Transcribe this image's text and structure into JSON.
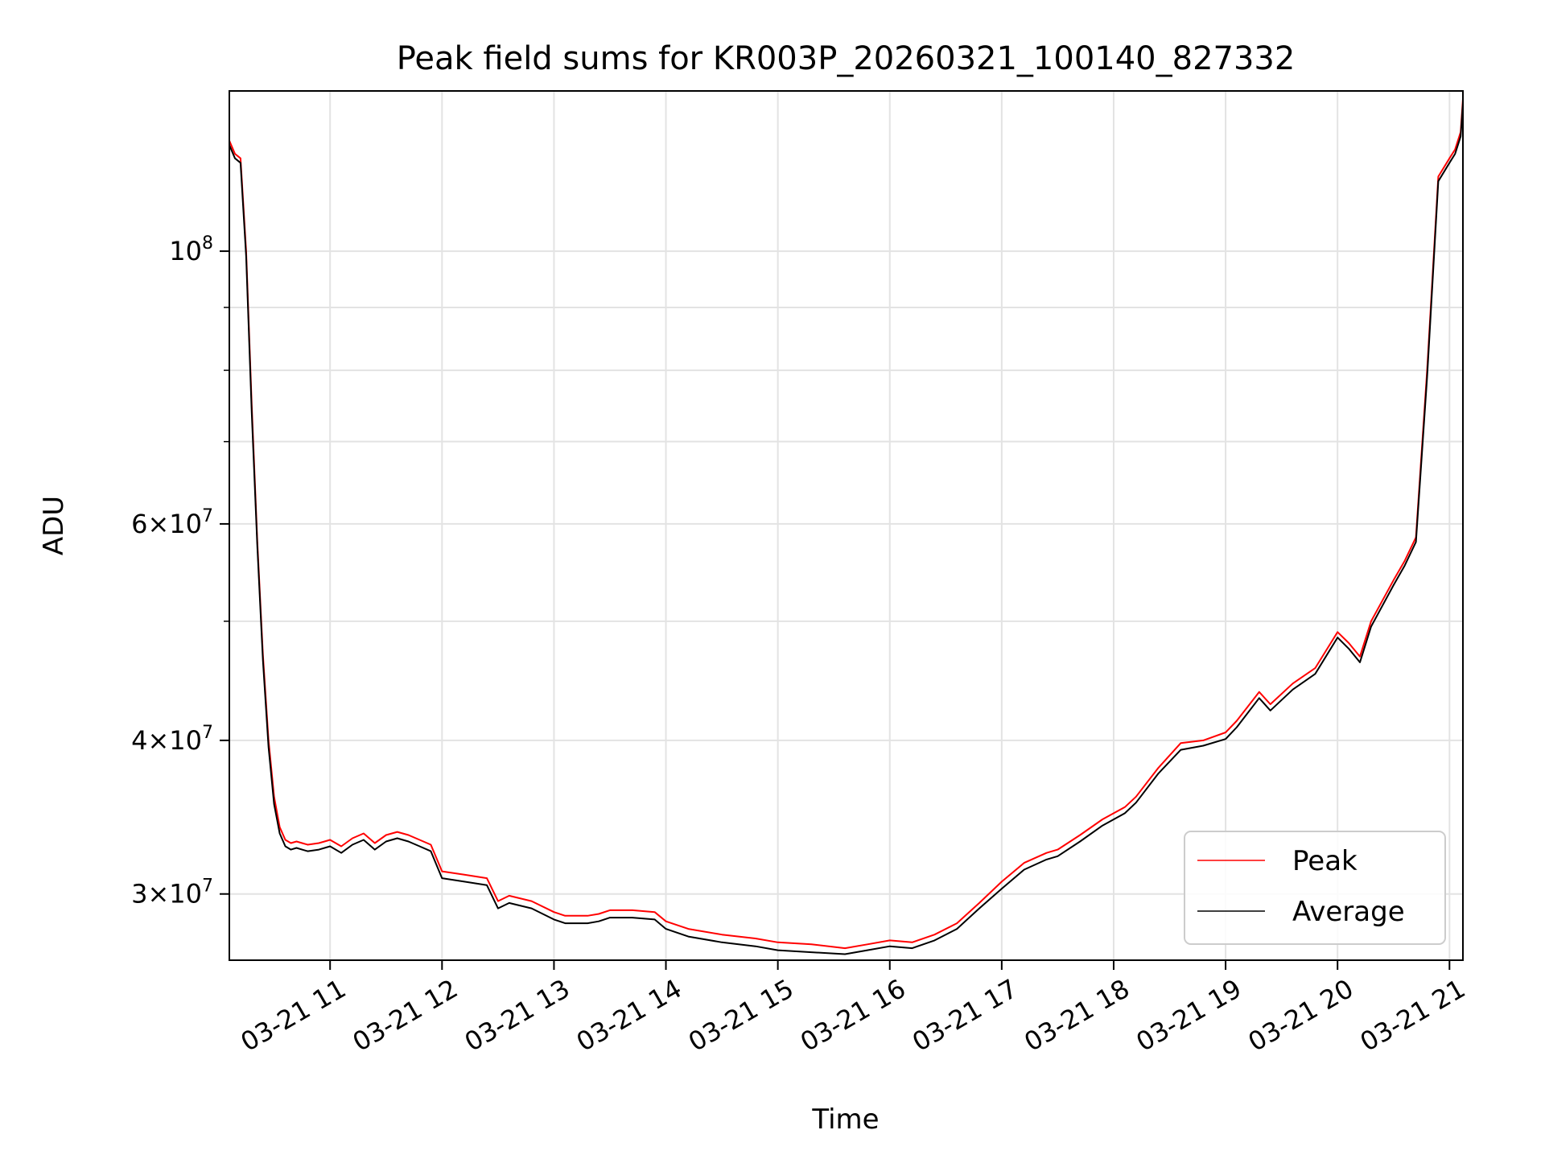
{
  "chart_data": {
    "type": "line",
    "title": "Peak field sums for KR003P_20260321_100140_827332",
    "xlabel": "Time",
    "ylabel": "ADU",
    "yscale": "log",
    "xlim": [
      10.1,
      21.12
    ],
    "ylim": [
      26500000,
      135000000
    ],
    "grid": true,
    "legend_position": "bottom-right",
    "x_ticks": [
      {
        "value": 11,
        "label": "03-21 11"
      },
      {
        "value": 12,
        "label": "03-21 12"
      },
      {
        "value": 13,
        "label": "03-21 13"
      },
      {
        "value": 14,
        "label": "03-21 14"
      },
      {
        "value": 15,
        "label": "03-21 15"
      },
      {
        "value": 16,
        "label": "03-21 16"
      },
      {
        "value": 17,
        "label": "03-21 17"
      },
      {
        "value": 18,
        "label": "03-21 18"
      },
      {
        "value": 19,
        "label": "03-21 19"
      },
      {
        "value": 20,
        "label": "03-21 20"
      },
      {
        "value": 21,
        "label": "03-21 21"
      }
    ],
    "y_ticks": [
      {
        "value": 30000000,
        "base": "3",
        "exp": "7"
      },
      {
        "value": 40000000,
        "base": "4",
        "exp": "7"
      },
      {
        "value": 60000000,
        "base": "6",
        "exp": "7"
      },
      {
        "value": 100000000,
        "base": "",
        "exp": "8"
      }
    ],
    "y_minor_ticks": [
      50000000,
      70000000,
      80000000,
      90000000
    ],
    "series": [
      {
        "name": "Peak",
        "color": "#ff0000",
        "x": [
          10.1,
          10.15,
          10.2,
          10.25,
          10.3,
          10.35,
          10.4,
          10.45,
          10.5,
          10.55,
          10.6,
          10.65,
          10.7,
          10.75,
          10.8,
          10.9,
          11.0,
          11.1,
          11.2,
          11.3,
          11.4,
          11.5,
          11.6,
          11.7,
          11.8,
          11.9,
          12.0,
          12.2,
          12.4,
          12.5,
          12.6,
          12.8,
          13.0,
          13.1,
          13.3,
          13.4,
          13.5,
          13.7,
          13.9,
          14.0,
          14.2,
          14.5,
          14.8,
          15.0,
          15.3,
          15.6,
          15.8,
          16.0,
          16.2,
          16.4,
          16.6,
          16.8,
          17.0,
          17.2,
          17.4,
          17.5,
          17.7,
          17.9,
          18.1,
          18.2,
          18.4,
          18.6,
          18.8,
          19.0,
          19.1,
          19.3,
          19.4,
          19.6,
          19.8,
          20.0,
          20.1,
          20.2,
          20.3,
          20.5,
          20.6,
          20.7,
          20.8,
          20.9,
          21.0,
          21.05,
          21.1,
          21.12
        ],
        "y": [
          123000000,
          120000000,
          119000000,
          100000000,
          75000000,
          58000000,
          47000000,
          40000000,
          36000000,
          34000000,
          33200000,
          33000000,
          33100000,
          33000000,
          32900000,
          33000000,
          33200000,
          32800000,
          33300000,
          33600000,
          33000000,
          33500000,
          33700000,
          33500000,
          33200000,
          32900000,
          31300000,
          31100000,
          30900000,
          29600000,
          29900000,
          29600000,
          29000000,
          28800000,
          28800000,
          28900000,
          29100000,
          29100000,
          29000000,
          28500000,
          28100000,
          27800000,
          27600000,
          27400000,
          27300000,
          27100000,
          27300000,
          27500000,
          27400000,
          27800000,
          28400000,
          29500000,
          30700000,
          31800000,
          32400000,
          32600000,
          33500000,
          34500000,
          35300000,
          36000000,
          38000000,
          39800000,
          40000000,
          40600000,
          41500000,
          43800000,
          42800000,
          44500000,
          45800000,
          49000000,
          48000000,
          46800000,
          50000000,
          54000000,
          56000000,
          58500000,
          80000000,
          115000000,
          119000000,
          121000000,
          125000000,
          133000000
        ]
      },
      {
        "name": "Average",
        "color": "#000000",
        "x": [
          10.1,
          10.15,
          10.2,
          10.25,
          10.3,
          10.35,
          10.4,
          10.45,
          10.5,
          10.55,
          10.6,
          10.65,
          10.7,
          10.75,
          10.8,
          10.9,
          11.0,
          11.1,
          11.2,
          11.3,
          11.4,
          11.5,
          11.6,
          11.7,
          11.8,
          11.9,
          12.0,
          12.2,
          12.4,
          12.5,
          12.6,
          12.8,
          13.0,
          13.1,
          13.3,
          13.4,
          13.5,
          13.7,
          13.9,
          14.0,
          14.2,
          14.5,
          14.8,
          15.0,
          15.3,
          15.6,
          15.8,
          16.0,
          16.2,
          16.4,
          16.6,
          16.8,
          17.0,
          17.2,
          17.4,
          17.5,
          17.7,
          17.9,
          18.1,
          18.2,
          18.4,
          18.6,
          18.8,
          19.0,
          19.1,
          19.3,
          19.4,
          19.6,
          19.8,
          20.0,
          20.1,
          20.2,
          20.3,
          20.5,
          20.6,
          20.7,
          20.8,
          20.9,
          21.0,
          21.05,
          21.1,
          21.12
        ],
        "y": [
          122000000,
          119000000,
          118000000,
          99000000,
          74000000,
          57500000,
          46500000,
          39500000,
          35500000,
          33600000,
          32800000,
          32600000,
          32700000,
          32600000,
          32500000,
          32600000,
          32800000,
          32400000,
          32900000,
          33200000,
          32600000,
          33100000,
          33300000,
          33100000,
          32800000,
          32500000,
          30900000,
          30700000,
          30500000,
          29200000,
          29500000,
          29200000,
          28600000,
          28400000,
          28400000,
          28500000,
          28700000,
          28700000,
          28600000,
          28100000,
          27700000,
          27400000,
          27200000,
          27000000,
          26900000,
          26800000,
          27000000,
          27200000,
          27100000,
          27500000,
          28100000,
          29200000,
          30300000,
          31400000,
          32000000,
          32200000,
          33100000,
          34100000,
          34900000,
          35600000,
          37600000,
          39300000,
          39600000,
          40100000,
          41000000,
          43300000,
          42300000,
          44000000,
          45300000,
          48500000,
          47500000,
          46300000,
          49500000,
          53500000,
          55500000,
          58000000,
          79000000,
          114000000,
          118000000,
          120000000,
          124000000,
          132000000
        ]
      }
    ]
  }
}
